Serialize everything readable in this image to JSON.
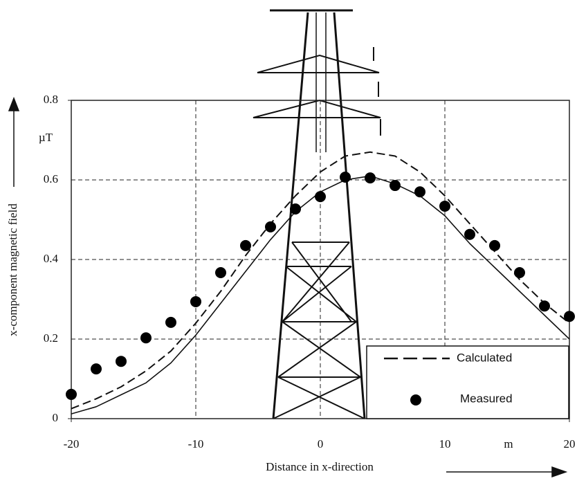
{
  "chart_data": {
    "type": "line",
    "x_label": "Distance in x-direction",
    "y_label": "x-component magnetic field",
    "x_unit": "m",
    "y_unit": "µT",
    "x": [
      -20,
      -18,
      -16,
      -14,
      -12,
      -10,
      -8,
      -6,
      -4,
      -2,
      0,
      2,
      4,
      6,
      8,
      10,
      12,
      14,
      16,
      18,
      20
    ],
    "series": [
      {
        "name": "Calculated",
        "color": "#111111",
        "linestyle": "dashed",
        "values": [
          0.025,
          0.05,
          0.08,
          0.12,
          0.17,
          0.24,
          0.32,
          0.41,
          0.49,
          0.56,
          0.62,
          0.66,
          0.67,
          0.66,
          0.62,
          0.56,
          0.49,
          0.42,
          0.35,
          0.29,
          0.24
        ]
      },
      {
        "color": "#111111",
        "linestyle": "solid",
        "values": [
          0.012,
          0.03,
          0.06,
          0.09,
          0.14,
          0.21,
          0.29,
          0.37,
          0.45,
          0.52,
          0.57,
          0.6,
          0.61,
          0.59,
          0.56,
          0.51,
          0.44,
          0.38,
          0.32,
          0.26,
          0.2
        ]
      },
      {
        "name": "Measured",
        "color": "#000000",
        "marker": "circle",
        "values": [
          0.061,
          0.125,
          0.144,
          0.203,
          0.242,
          0.294,
          0.367,
          0.435,
          0.482,
          0.527,
          0.558,
          0.607,
          0.605,
          0.586,
          0.57,
          0.534,
          0.463,
          0.435,
          0.367,
          0.283,
          0.257
        ]
      }
    ],
    "xlim": [
      -20,
      20
    ],
    "xticks": [
      -20,
      -10,
      0,
      10,
      20
    ],
    "ylim": [
      0,
      0.8
    ],
    "yticks": [
      0,
      0.2,
      0.4,
      0.6,
      0.8
    ],
    "grid": true,
    "legend": "lower right"
  }
}
